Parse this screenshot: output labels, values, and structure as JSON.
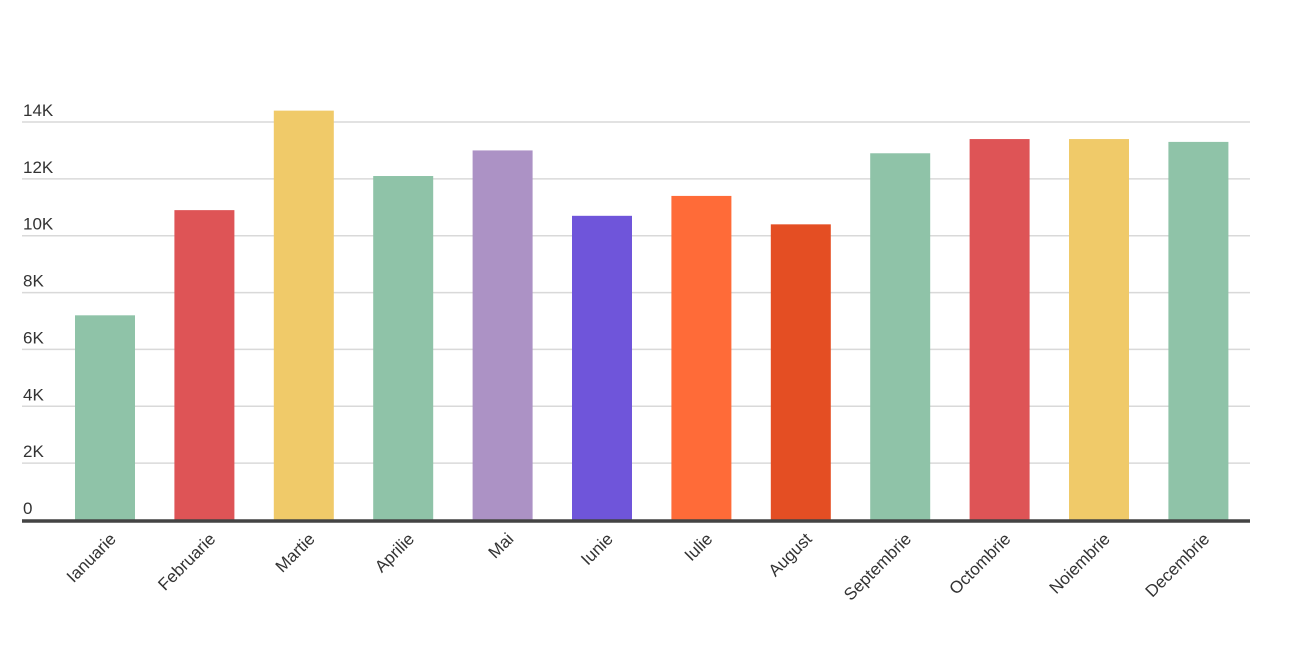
{
  "chart_data": {
    "type": "bar",
    "title": "",
    "xlabel": "",
    "ylabel": "",
    "categories": [
      "Ianuarie",
      "Februarie",
      "Martie",
      "Aprilie",
      "Mai",
      "Iunie",
      "Iulie",
      "August",
      "Septembrie",
      "Octombrie",
      "Noiembrie",
      "Decembrie"
    ],
    "values": [
      7200,
      10900,
      14400,
      12100,
      13000,
      10700,
      11400,
      10400,
      12900,
      13400,
      13400,
      13300
    ],
    "colors": [
      "#8fc3a8",
      "#de5456",
      "#f0ca69",
      "#8fc3a8",
      "#ac92c5",
      "#6f55da",
      "#ff6b38",
      "#e44e23",
      "#8fc3a8",
      "#de5456",
      "#f0ca69",
      "#8fc3a8"
    ],
    "ylim": [
      0,
      14000
    ],
    "yticks": [
      0,
      2000,
      4000,
      6000,
      8000,
      10000,
      12000,
      14000
    ],
    "ytick_labels": [
      "0",
      "2K",
      "4K",
      "6K",
      "8K",
      "10K",
      "12K",
      "14K"
    ],
    "grid": true,
    "legend": "none"
  }
}
